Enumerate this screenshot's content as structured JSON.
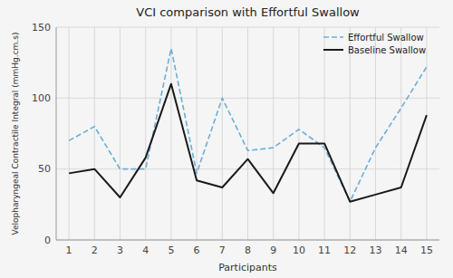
{
  "chart_data": {
    "type": "line",
    "title": "VCI comparison with Effortful Swallow",
    "xlabel": "Participants",
    "ylabel": "Velopharyngeal Contractile Integral (mmHg.cm.s)",
    "x": [
      1,
      2,
      3,
      4,
      5,
      6,
      7,
      8,
      9,
      10,
      11,
      12,
      13,
      14,
      15
    ],
    "series": [
      {
        "name": "Effortful Swallow",
        "color": "#6baed6",
        "line_style": "dashed",
        "values": [
          70,
          80,
          50,
          50,
          135,
          47,
          100,
          63,
          65,
          78,
          65,
          27,
          65,
          93,
          122
        ]
      },
      {
        "name": "Baseline Swallow",
        "color": "#1a1a1a",
        "line_style": "solid",
        "values": [
          47,
          50,
          30,
          58,
          110,
          42,
          37,
          57,
          33,
          68,
          68,
          27,
          32,
          37,
          88
        ]
      }
    ],
    "xlim": [
      0.5,
      15.5
    ],
    "xticks": [
      1,
      2,
      3,
      4,
      5,
      6,
      7,
      8,
      9,
      10,
      11,
      12,
      13,
      14,
      15
    ],
    "ylim": [
      0,
      150
    ],
    "yticks": [
      0,
      50,
      100,
      150
    ],
    "grid": true,
    "legend": "upper right"
  }
}
